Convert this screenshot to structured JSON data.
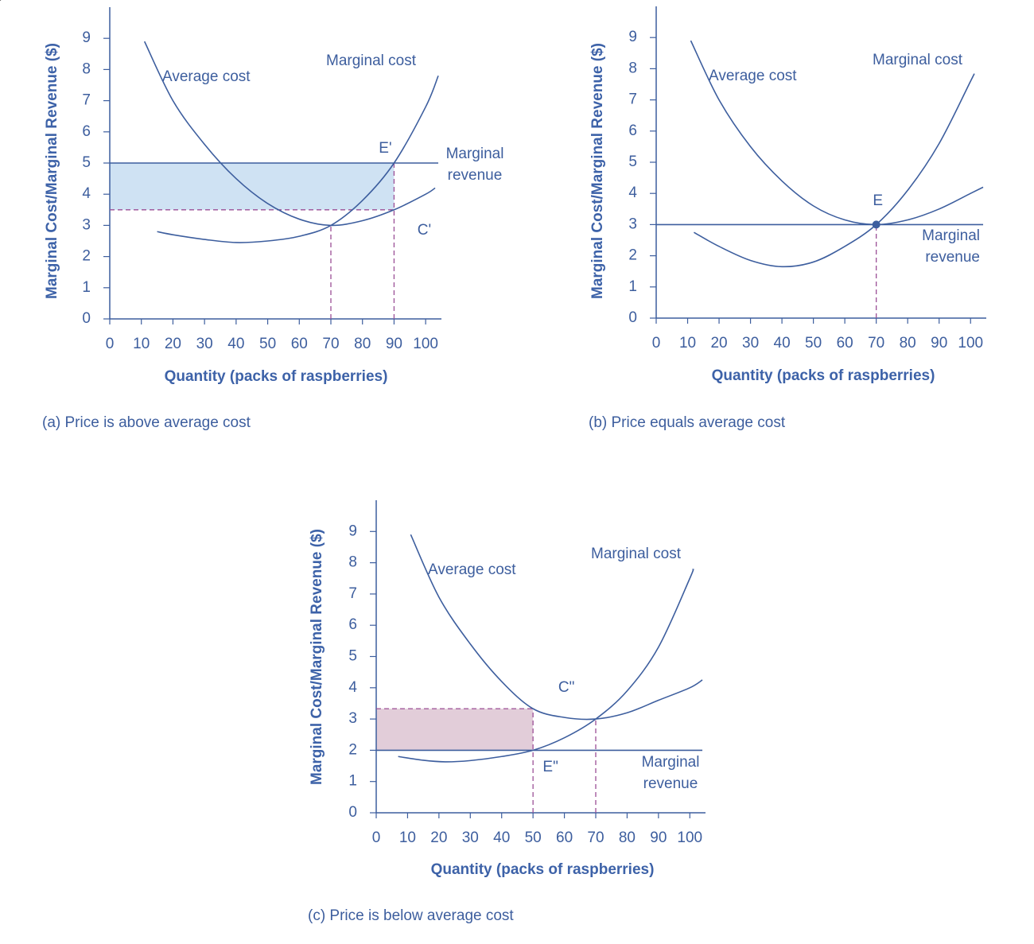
{
  "chart_data": [
    {
      "type": "line",
      "caption": "(a) Price is above average cost",
      "xlabel": "Quantity (packs of raspberries)",
      "ylabel": "Marginal Cost/Marginal Revenue ($)",
      "xlim": [
        0,
        105
      ],
      "ylim": [
        0,
        10
      ],
      "xticks": [
        0,
        10,
        20,
        30,
        40,
        50,
        60,
        70,
        80,
        90,
        100
      ],
      "yticks": [
        0,
        1,
        2,
        3,
        4,
        5,
        6,
        7,
        8,
        9
      ],
      "series": [
        {
          "name": "Average cost",
          "color": "#3d5e9e",
          "x": [
            11,
            20,
            30,
            40,
            50,
            60,
            70,
            80,
            90,
            100,
            103
          ],
          "values": [
            8.9,
            7.0,
            5.6,
            4.5,
            3.7,
            3.2,
            3.0,
            3.15,
            3.5,
            4.0,
            4.2
          ]
        },
        {
          "name": "Marginal cost",
          "color": "#3d5e9e",
          "x": [
            15,
            20,
            30,
            40,
            50,
            60,
            70,
            80,
            90,
            100,
            104
          ],
          "values": [
            2.8,
            2.7,
            2.55,
            2.45,
            2.5,
            2.65,
            3.0,
            3.8,
            5.0,
            6.8,
            7.8
          ]
        },
        {
          "name": "Marginal revenue",
          "color": "#3d5e9e",
          "x": [
            0,
            104
          ],
          "values": [
            5,
            5
          ]
        }
      ],
      "shade": {
        "x": [
          0,
          90
        ],
        "y": [
          3.5,
          5
        ],
        "color": "#cfe2f3"
      },
      "guide_color": "#9b4f96",
      "guides": [
        {
          "x": [
            0,
            90
          ],
          "y": [
            3.5,
            3.5
          ]
        },
        {
          "x": [
            70,
            70
          ],
          "y": [
            0,
            3
          ]
        },
        {
          "x": [
            90,
            90
          ],
          "y": [
            0,
            5
          ]
        }
      ],
      "annotations": [
        {
          "text": "E'",
          "x": 90,
          "y": 5
        },
        {
          "text": "C'",
          "x": 90,
          "y": 3.5,
          "arrow": true
        }
      ]
    },
    {
      "type": "line",
      "caption": "(b) Price equals average cost",
      "xlabel": "Quantity (packs of raspberries)",
      "ylabel": "Marginal Cost/Marginal Revenue ($)",
      "xlim": [
        0,
        105
      ],
      "ylim": [
        0,
        10
      ],
      "xticks": [
        0,
        10,
        20,
        30,
        40,
        50,
        60,
        70,
        80,
        90,
        100
      ],
      "yticks": [
        0,
        1,
        2,
        3,
        4,
        5,
        6,
        7,
        8,
        9
      ],
      "series": [
        {
          "name": "Average cost",
          "color": "#3d5e9e",
          "x": [
            11,
            20,
            30,
            40,
            50,
            60,
            70,
            80,
            90,
            100,
            104
          ],
          "values": [
            8.9,
            7.0,
            5.5,
            4.4,
            3.6,
            3.15,
            3.0,
            3.15,
            3.5,
            4.0,
            4.2
          ]
        },
        {
          "name": "Marginal cost",
          "color": "#3d5e9e",
          "x": [
            12,
            20,
            30,
            40,
            50,
            60,
            70,
            80,
            90,
            100,
            101
          ],
          "values": [
            2.75,
            2.3,
            1.85,
            1.65,
            1.8,
            2.3,
            3.0,
            4.1,
            5.6,
            7.6,
            7.8
          ]
        },
        {
          "name": "Marginal revenue",
          "color": "#3d5e9e",
          "x": [
            0,
            104
          ],
          "values": [
            3,
            3
          ]
        }
      ],
      "guide_color": "#9b4f96",
      "guides": [
        {
          "x": [
            70,
            70
          ],
          "y": [
            0,
            3
          ]
        }
      ],
      "annotations": [
        {
          "text": "E",
          "x": 70,
          "y": 3,
          "dot": true
        }
      ]
    },
    {
      "type": "line",
      "caption": "(c) Price is below average cost",
      "xlabel": "Quantity (packs of raspberries)",
      "ylabel": "Marginal Cost/Marginal Revenue ($)",
      "xlim": [
        0,
        105
      ],
      "ylim": [
        0,
        10
      ],
      "xticks": [
        0,
        10,
        20,
        30,
        40,
        50,
        60,
        70,
        80,
        90,
        100
      ],
      "yticks": [
        0,
        1,
        2,
        3,
        4,
        5,
        6,
        7,
        8,
        9
      ],
      "series": [
        {
          "name": "Average cost",
          "color": "#3d5e9e",
          "x": [
            11,
            20,
            30,
            40,
            50,
            60,
            70,
            80,
            90,
            100,
            104
          ],
          "values": [
            8.9,
            6.9,
            5.4,
            4.2,
            3.33,
            3.05,
            3.0,
            3.2,
            3.6,
            4.0,
            4.25
          ]
        },
        {
          "name": "Marginal cost",
          "color": "#3d5e9e",
          "x": [
            7,
            15,
            22,
            30,
            40,
            50,
            60,
            70,
            80,
            90,
            100,
            101
          ],
          "values": [
            1.8,
            1.68,
            1.63,
            1.67,
            1.8,
            2.0,
            2.4,
            3.0,
            3.9,
            5.3,
            7.5,
            7.8
          ]
        },
        {
          "name": "Marginal revenue",
          "color": "#3d5e9e",
          "x": [
            0,
            104
          ],
          "values": [
            2,
            2
          ]
        }
      ],
      "shade": {
        "x": [
          0,
          50
        ],
        "y": [
          2,
          3.33
        ],
        "color": "#e2cdd9"
      },
      "guide_color": "#9b4f96",
      "guides": [
        {
          "x": [
            0,
            50
          ],
          "y": [
            3.33,
            3.33
          ]
        },
        {
          "x": [
            50,
            50
          ],
          "y": [
            0,
            3.33
          ]
        },
        {
          "x": [
            70,
            70
          ],
          "y": [
            0,
            3
          ]
        }
      ],
      "annotations": [
        {
          "text": "C\"",
          "x": 50,
          "y": 3.33,
          "arrow": true
        },
        {
          "text": "E\"",
          "x": 50,
          "y": 2
        }
      ]
    }
  ]
}
